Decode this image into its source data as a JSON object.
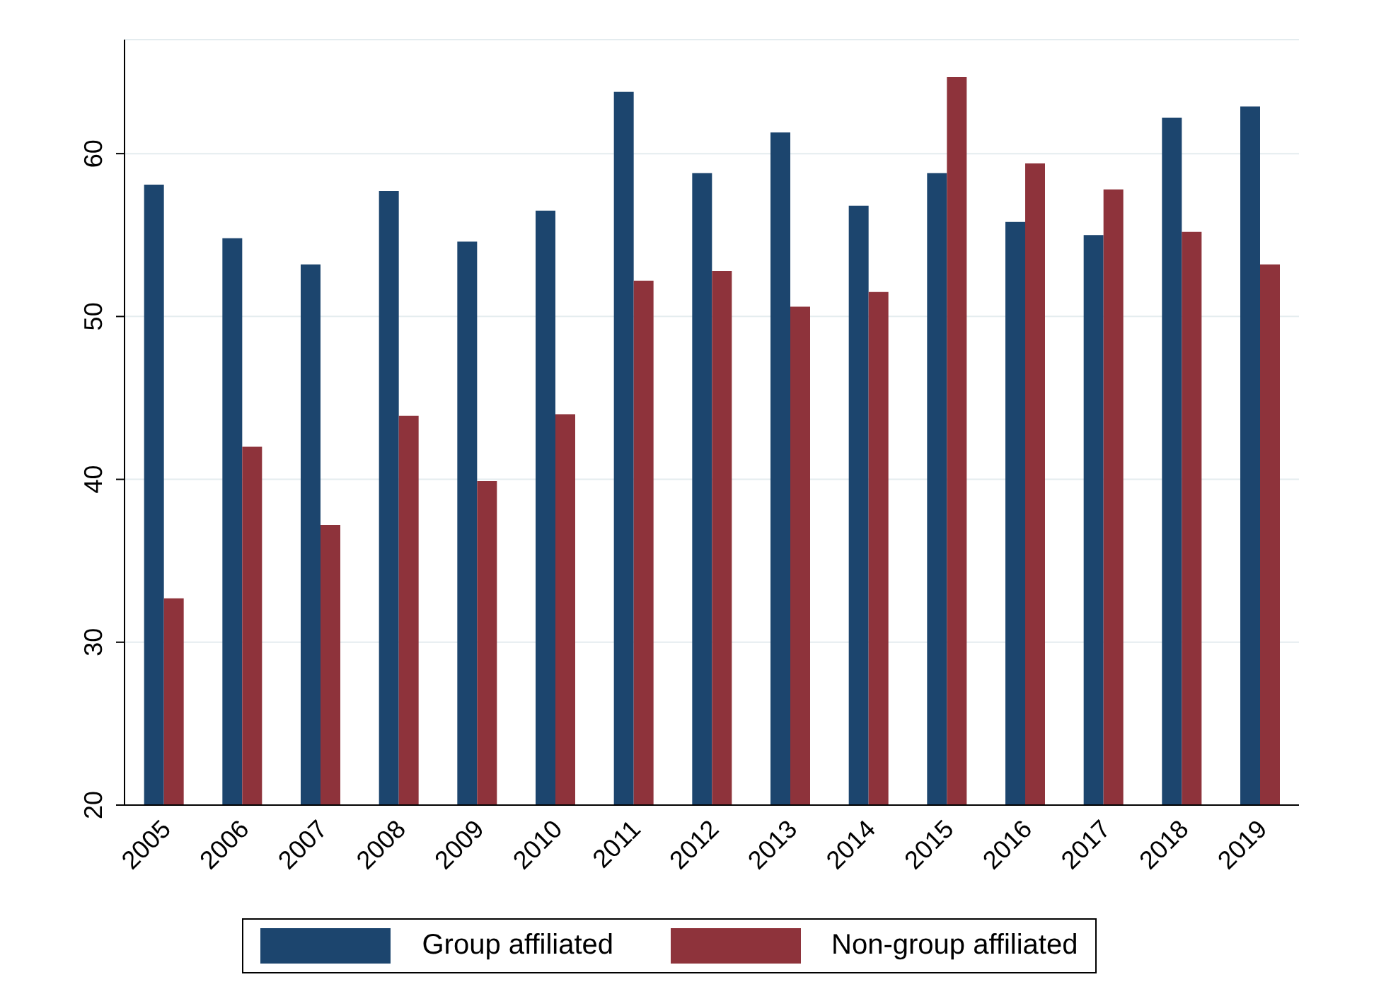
{
  "chart_data": {
    "type": "bar",
    "categories": [
      "2005",
      "2006",
      "2007",
      "2008",
      "2009",
      "2010",
      "2011",
      "2012",
      "2013",
      "2014",
      "2015",
      "2016",
      "2017",
      "2018",
      "2019"
    ],
    "series": [
      {
        "name": "Group affiliated",
        "color": "#1c456e",
        "values": [
          58.1,
          54.8,
          53.2,
          57.7,
          54.6,
          56.5,
          63.8,
          58.8,
          61.3,
          56.8,
          58.8,
          55.8,
          55.0,
          62.2,
          62.9
        ]
      },
      {
        "name": "Non-group affiliated",
        "color": "#8e333b",
        "values": [
          32.7,
          42.0,
          37.2,
          43.9,
          39.9,
          44.0,
          52.2,
          52.8,
          50.6,
          51.5,
          64.7,
          59.4,
          57.8,
          55.2,
          53.2
        ]
      }
    ],
    "ylim": [
      20,
      67
    ],
    "yticks": [
      20,
      30,
      40,
      50,
      60
    ],
    "grid": "y",
    "legend": "bottom"
  }
}
